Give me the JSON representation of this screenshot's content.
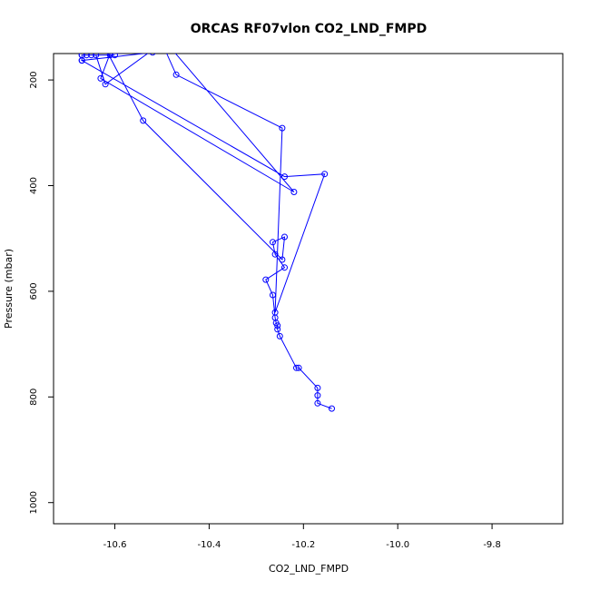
{
  "chart_data": {
    "type": "line",
    "title": "ORCAS RF07vlon CO2_LND_FMPD",
    "xlabel": "CO2_LND_FMPD",
    "ylabel": "Pressure (mbar)",
    "xlim": [
      -10.73,
      -9.65
    ],
    "ylim": [
      1040,
      150
    ],
    "y_inverted": true,
    "grid": false,
    "legend": "none",
    "line_color": "#0000ff",
    "marker": "open-circle",
    "x_ticks": [
      "-10.6",
      "-10.4",
      "-10.2",
      "-10.0",
      "-9.8"
    ],
    "x_tick_values": [
      -10.6,
      -10.4,
      -10.2,
      -10.0,
      -9.8
    ],
    "y_ticks": [
      "200",
      "400",
      "600",
      "800",
      "1000"
    ],
    "y_tick_values": [
      200,
      400,
      600,
      800,
      1000
    ],
    "series": [
      {
        "x": [
          -10.14,
          -10.17,
          -10.17,
          -10.17,
          -10.21,
          -10.215,
          -10.25,
          -10.255,
          -10.255,
          -10.258,
          -10.26,
          -10.265,
          -10.28,
          -10.24,
          -10.26,
          -10.265,
          -10.24,
          -10.245,
          -10.54,
          -10.62,
          -10.5,
          -10.22,
          -10.63,
          -10.61,
          -10.52,
          -10.67,
          -10.24,
          -10.155,
          -10.26,
          -10.245,
          -10.47,
          -10.5,
          -10.62,
          -10.64,
          -10.61,
          -10.6,
          -10.65,
          -10.66,
          -10.67,
          -10.67,
          -10.67
        ],
        "y": [
          822,
          812,
          797,
          783,
          745,
          745,
          685,
          672,
          665,
          660,
          650,
          607,
          578,
          555,
          530,
          507,
          497,
          540,
          277,
          140,
          120,
          412,
          197,
          150,
          148,
          163,
          383,
          378,
          640,
          291,
          190,
          130,
          208,
          153,
          153,
          153,
          153,
          153,
          153,
          153,
          163
        ]
      }
    ]
  }
}
